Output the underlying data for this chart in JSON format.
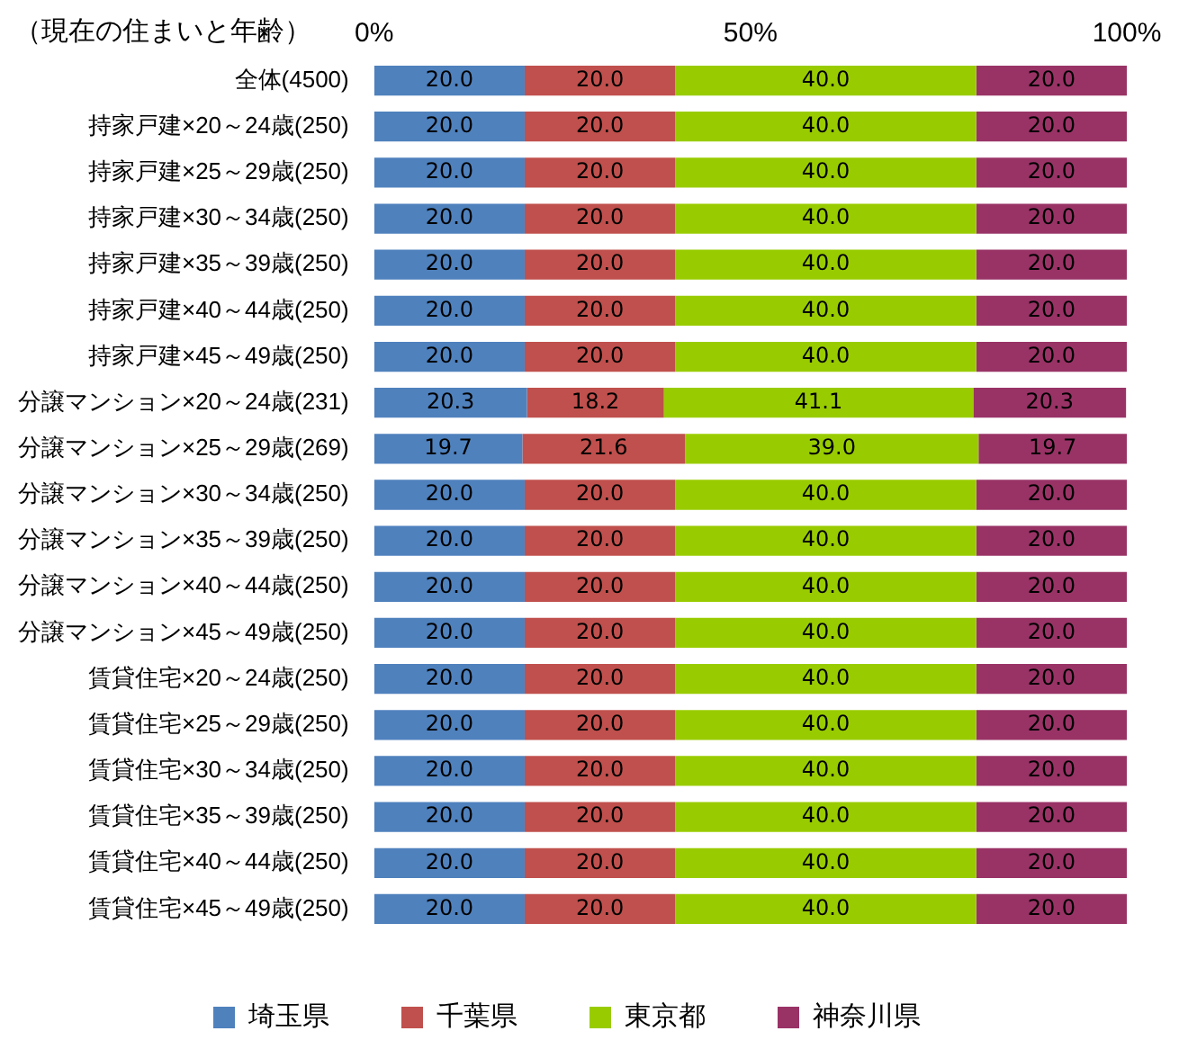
{
  "chart_data": {
    "type": "bar",
    "orientation": "horizontal",
    "stacked": true,
    "title": "（現在の住まいと年齢）",
    "categories": [
      "全体(4500)",
      "持家戸建×20～24歳(250)",
      "持家戸建×25～29歳(250)",
      "持家戸建×30～34歳(250)",
      "持家戸建×35～39歳(250)",
      "持家戸建×40～44歳(250)",
      "持家戸建×45～49歳(250)",
      "分譲マンション×20～24歳(231)",
      "分譲マンション×25～29歳(269)",
      "分譲マンション×30～34歳(250)",
      "分譲マンション×35～39歳(250)",
      "分譲マンション×40～44歳(250)",
      "分譲マンション×45～49歳(250)",
      "賃貸住宅×20～24歳(250)",
      "賃貸住宅×25～29歳(250)",
      "賃貸住宅×30～34歳(250)",
      "賃貸住宅×35～39歳(250)",
      "賃貸住宅×40～44歳(250)",
      "賃貸住宅×45～49歳(250)"
    ],
    "series": [
      {
        "name": "埼玉県",
        "color": "#4f81bd",
        "values": [
          20,
          20,
          20,
          20,
          20,
          20,
          20,
          20.3,
          19.7,
          20,
          20,
          20,
          20,
          20,
          20,
          20,
          20,
          20,
          20
        ],
        "value_labels": [
          "20.0",
          "20.0",
          "20.0",
          "20.0",
          "20.0",
          "20.0",
          "20.0",
          "20.3",
          "19.7",
          "20.0",
          "20.0",
          "20.0",
          "20.0",
          "20.0",
          "20.0",
          "20.0",
          "20.0",
          "20.0",
          "20.0"
        ]
      },
      {
        "name": "千葉県",
        "color": "#c0504d",
        "values": [
          20,
          20,
          20,
          20,
          20,
          20,
          20,
          18.2,
          21.6,
          20,
          20,
          20,
          20,
          20,
          20,
          20,
          20,
          20,
          20
        ],
        "value_labels": [
          "20.0",
          "20.0",
          "20.0",
          "20.0",
          "20.0",
          "20.0",
          "20.0",
          "18.2",
          "21.6",
          "20.0",
          "20.0",
          "20.0",
          "20.0",
          "20.0",
          "20.0",
          "20.0",
          "20.0",
          "20.0",
          "20.0"
        ]
      },
      {
        "name": "東京都",
        "color": "#99cc00",
        "values": [
          40,
          40,
          40,
          40,
          40,
          40,
          40,
          41.1,
          39,
          40,
          40,
          40,
          40,
          40,
          40,
          40,
          40,
          40,
          40
        ],
        "value_labels": [
          "40.0",
          "40.0",
          "40.0",
          "40.0",
          "40.0",
          "40.0",
          "40.0",
          "41.1",
          "39.0",
          "40.0",
          "40.0",
          "40.0",
          "40.0",
          "40.0",
          "40.0",
          "40.0",
          "40.0",
          "40.0",
          "40.0"
        ]
      },
      {
        "name": "神奈川県",
        "color": "#993366",
        "values": [
          20,
          20,
          20,
          20,
          20,
          20,
          20,
          20.3,
          19.7,
          20,
          20,
          20,
          20,
          20,
          20,
          20,
          20,
          20,
          20
        ],
        "value_labels": [
          "20.0",
          "20.0",
          "20.0",
          "20.0",
          "20.0",
          "20.0",
          "20.0",
          "20.3",
          "19.7",
          "20.0",
          "20.0",
          "20.0",
          "20.0",
          "20.0",
          "20.0",
          "20.0",
          "20.0",
          "20.0",
          "20.0"
        ]
      }
    ],
    "xlim": [
      0,
      100
    ],
    "xticks": [
      {
        "value": 0,
        "label": "0%"
      },
      {
        "value": 50,
        "label": "50%"
      },
      {
        "value": 100,
        "label": "100%"
      }
    ],
    "grid": false,
    "legend": "bottom"
  }
}
